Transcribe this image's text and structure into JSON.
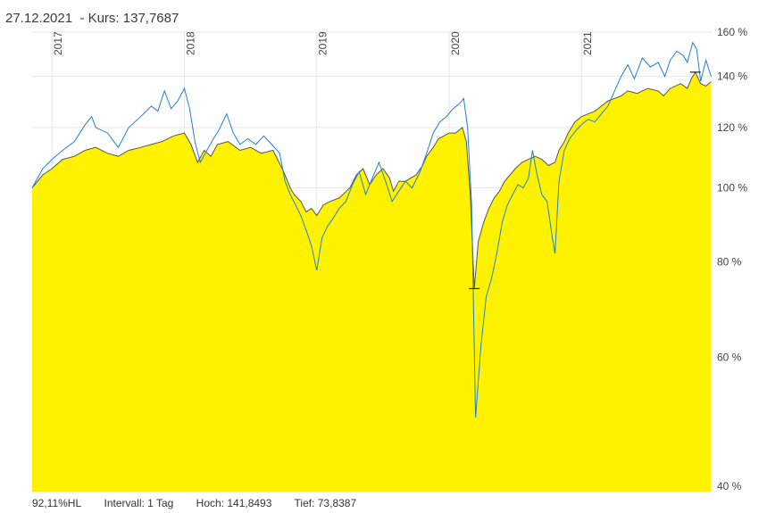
{
  "header": {
    "date": "27.12.2021",
    "kurs_label": "Kurs:",
    "kurs_value": "137,7687"
  },
  "footer": {
    "perf": "92,11%HL",
    "interval": "Intervall: 1 Tag",
    "hoch": "Hoch: 141,8493",
    "tief": "Tief: 73,8387"
  },
  "colors": {
    "area_fill": "#fff200",
    "area_line": "#555555",
    "compare_line": "#1f7fd6",
    "grid": "#e6e6e6"
  },
  "chart_data": {
    "type": "area",
    "scale": "log",
    "xlabel": "",
    "ylabel": "",
    "xlim": [
      2016.85,
      2021.99
    ],
    "ylim": [
      40,
      160
    ],
    "x_ticks": [
      {
        "x": 2017.0,
        "label": "2017"
      },
      {
        "x": 2018.0,
        "label": "2018"
      },
      {
        "x": 2019.0,
        "label": "2019"
      },
      {
        "x": 2020.0,
        "label": "2020"
      },
      {
        "x": 2021.0,
        "label": "2021"
      }
    ],
    "y_ticks": [
      {
        "y": 40,
        "label": "40 %"
      },
      {
        "y": 60,
        "label": "60 %"
      },
      {
        "y": 80,
        "label": "80 %"
      },
      {
        "y": 100,
        "label": "100 %"
      },
      {
        "y": 120,
        "label": "120 %"
      },
      {
        "y": 140,
        "label": "140 %"
      },
      {
        "y": 160,
        "label": "160 %"
      }
    ],
    "markers": [
      {
        "x": 2020.19,
        "y": 73.8
      },
      {
        "x": 2021.86,
        "y": 141.8
      }
    ],
    "series": [
      {
        "values": [
          [
            2016.85,
            100
          ],
          [
            2016.93,
            104
          ],
          [
            2017.0,
            106
          ],
          [
            2017.08,
            109
          ],
          [
            2017.17,
            110
          ],
          [
            2017.25,
            112
          ],
          [
            2017.33,
            113
          ],
          [
            2017.42,
            111
          ],
          [
            2017.5,
            110
          ],
          [
            2017.58,
            112
          ],
          [
            2017.67,
            113
          ],
          [
            2017.75,
            114
          ],
          [
            2017.83,
            115
          ],
          [
            2017.92,
            117
          ],
          [
            2018.0,
            118
          ],
          [
            2018.05,
            114
          ],
          [
            2018.1,
            108
          ],
          [
            2018.15,
            112
          ],
          [
            2018.2,
            110
          ],
          [
            2018.25,
            114
          ],
          [
            2018.33,
            115
          ],
          [
            2018.42,
            112
          ],
          [
            2018.5,
            113
          ],
          [
            2018.58,
            111
          ],
          [
            2018.67,
            112
          ],
          [
            2018.75,
            105
          ],
          [
            2018.8,
            100
          ],
          [
            2018.83,
            98
          ],
          [
            2018.88,
            96
          ],
          [
            2018.92,
            93
          ],
          [
            2018.96,
            94
          ],
          [
            2019.0,
            92
          ],
          [
            2019.05,
            95
          ],
          [
            2019.1,
            96
          ],
          [
            2019.17,
            97
          ],
          [
            2019.25,
            100
          ],
          [
            2019.3,
            104
          ],
          [
            2019.35,
            106
          ],
          [
            2019.4,
            101
          ],
          [
            2019.45,
            104
          ],
          [
            2019.5,
            106
          ],
          [
            2019.55,
            103
          ],
          [
            2019.58,
            99
          ],
          [
            2019.62,
            102
          ],
          [
            2019.67,
            102
          ],
          [
            2019.75,
            104
          ],
          [
            2019.8,
            107
          ],
          [
            2019.83,
            110
          ],
          [
            2019.88,
            113
          ],
          [
            2019.92,
            116
          ],
          [
            2019.96,
            117
          ],
          [
            2020.0,
            118
          ],
          [
            2020.05,
            118
          ],
          [
            2020.1,
            120
          ],
          [
            2020.13,
            115
          ],
          [
            2020.16,
            98
          ],
          [
            2020.19,
            73.8
          ],
          [
            2020.22,
            85
          ],
          [
            2020.26,
            90
          ],
          [
            2020.3,
            94
          ],
          [
            2020.34,
            97
          ],
          [
            2020.38,
            99
          ],
          [
            2020.42,
            102
          ],
          [
            2020.46,
            104
          ],
          [
            2020.5,
            106
          ],
          [
            2020.55,
            108
          ],
          [
            2020.6,
            109
          ],
          [
            2020.65,
            110
          ],
          [
            2020.7,
            109
          ],
          [
            2020.75,
            107
          ],
          [
            2020.8,
            108
          ],
          [
            2020.83,
            112
          ],
          [
            2020.87,
            115
          ],
          [
            2020.9,
            118
          ],
          [
            2020.95,
            122
          ],
          [
            2021.0,
            124
          ],
          [
            2021.05,
            125
          ],
          [
            2021.1,
            126
          ],
          [
            2021.15,
            128
          ],
          [
            2021.2,
            130
          ],
          [
            2021.25,
            131
          ],
          [
            2021.3,
            132
          ],
          [
            2021.35,
            134
          ],
          [
            2021.42,
            133
          ],
          [
            2021.5,
            135
          ],
          [
            2021.58,
            134
          ],
          [
            2021.62,
            132
          ],
          [
            2021.67,
            135
          ],
          [
            2021.75,
            137
          ],
          [
            2021.8,
            135
          ],
          [
            2021.83,
            139
          ],
          [
            2021.86,
            141.8
          ],
          [
            2021.9,
            137
          ],
          [
            2021.94,
            136
          ],
          [
            2021.98,
            137.8
          ]
        ]
      },
      {
        "values": [
          [
            2016.85,
            100
          ],
          [
            2016.93,
            106
          ],
          [
            2017.0,
            109
          ],
          [
            2017.08,
            112
          ],
          [
            2017.17,
            115
          ],
          [
            2017.25,
            121
          ],
          [
            2017.3,
            124
          ],
          [
            2017.33,
            120
          ],
          [
            2017.42,
            118
          ],
          [
            2017.5,
            113
          ],
          [
            2017.58,
            120
          ],
          [
            2017.67,
            124
          ],
          [
            2017.75,
            128
          ],
          [
            2017.8,
            126
          ],
          [
            2017.85,
            134
          ],
          [
            2017.9,
            127
          ],
          [
            2017.95,
            130
          ],
          [
            2018.0,
            135
          ],
          [
            2018.04,
            127
          ],
          [
            2018.08,
            115
          ],
          [
            2018.12,
            108
          ],
          [
            2018.17,
            112
          ],
          [
            2018.22,
            116
          ],
          [
            2018.26,
            119
          ],
          [
            2018.32,
            125
          ],
          [
            2018.37,
            118
          ],
          [
            2018.42,
            114
          ],
          [
            2018.48,
            116
          ],
          [
            2018.54,
            114
          ],
          [
            2018.6,
            117
          ],
          [
            2018.66,
            114
          ],
          [
            2018.72,
            111
          ],
          [
            2018.76,
            102
          ],
          [
            2018.8,
            98
          ],
          [
            2018.84,
            95
          ],
          [
            2018.88,
            92
          ],
          [
            2018.92,
            88
          ],
          [
            2018.96,
            84
          ],
          [
            2019.0,
            78
          ],
          [
            2019.04,
            86
          ],
          [
            2019.08,
            89
          ],
          [
            2019.12,
            91
          ],
          [
            2019.17,
            94
          ],
          [
            2019.22,
            96
          ],
          [
            2019.27,
            101
          ],
          [
            2019.32,
            105
          ],
          [
            2019.37,
            98
          ],
          [
            2019.42,
            103
          ],
          [
            2019.47,
            108
          ],
          [
            2019.52,
            102
          ],
          [
            2019.57,
            96
          ],
          [
            2019.62,
            99
          ],
          [
            2019.67,
            102
          ],
          [
            2019.72,
            100
          ],
          [
            2019.78,
            105
          ],
          [
            2019.83,
            111
          ],
          [
            2019.88,
            118
          ],
          [
            2019.93,
            122
          ],
          [
            2019.98,
            124
          ],
          [
            2020.03,
            127
          ],
          [
            2020.08,
            129
          ],
          [
            2020.11,
            131
          ],
          [
            2020.14,
            120
          ],
          [
            2020.17,
            95
          ],
          [
            2020.2,
            50
          ],
          [
            2020.24,
            62
          ],
          [
            2020.28,
            72
          ],
          [
            2020.32,
            76
          ],
          [
            2020.36,
            82
          ],
          [
            2020.4,
            90
          ],
          [
            2020.44,
            95
          ],
          [
            2020.48,
            98
          ],
          [
            2020.52,
            101
          ],
          [
            2020.56,
            100
          ],
          [
            2020.6,
            103
          ],
          [
            2020.63,
            112
          ],
          [
            2020.66,
            105
          ],
          [
            2020.7,
            98
          ],
          [
            2020.74,
            96
          ],
          [
            2020.78,
            86
          ],
          [
            2020.8,
            82
          ],
          [
            2020.83,
            102
          ],
          [
            2020.87,
            112
          ],
          [
            2020.91,
            116
          ],
          [
            2020.96,
            119
          ],
          [
            2021.0,
            121
          ],
          [
            2021.05,
            123
          ],
          [
            2021.1,
            122
          ],
          [
            2021.15,
            125
          ],
          [
            2021.2,
            128
          ],
          [
            2021.25,
            134
          ],
          [
            2021.3,
            140
          ],
          [
            2021.35,
            145
          ],
          [
            2021.4,
            139
          ],
          [
            2021.46,
            148
          ],
          [
            2021.52,
            144
          ],
          [
            2021.58,
            146
          ],
          [
            2021.63,
            140
          ],
          [
            2021.67,
            147
          ],
          [
            2021.72,
            151
          ],
          [
            2021.77,
            149
          ],
          [
            2021.8,
            146
          ],
          [
            2021.84,
            155
          ],
          [
            2021.87,
            152
          ],
          [
            2021.9,
            138
          ],
          [
            2021.94,
            147
          ],
          [
            2021.98,
            140
          ]
        ]
      }
    ]
  }
}
